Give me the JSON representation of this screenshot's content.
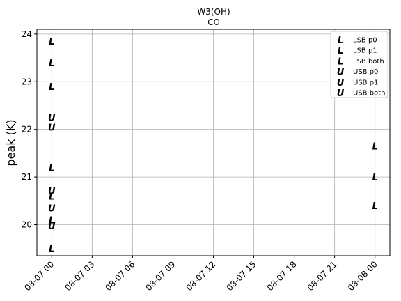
{
  "chart_data": {
    "type": "scatter",
    "title": "W3(OH)",
    "subtitle": "CO",
    "ylabel": "peak (K)",
    "xlabel": "",
    "x_ticks": [
      "08-07 00",
      "08-07 03",
      "08-07 06",
      "08-07 09",
      "08-07 12",
      "08-07 15",
      "08-07 18",
      "08-07 21",
      "08-08 00"
    ],
    "x_range_hours": [
      -1.1,
      25.1
    ],
    "y_ticks": [
      "20",
      "21",
      "22",
      "23",
      "24"
    ],
    "ylim": [
      19.35,
      24.1
    ],
    "grid": true,
    "legend_position": "top-right",
    "series": [
      {
        "name": "LSB p0",
        "marker": "L",
        "color": "#2e8fdc",
        "points": [
          {
            "x": 0,
            "y": 22.9
          },
          {
            "x": 0,
            "y": 20.1
          },
          {
            "x": 0,
            "y": 19.5
          },
          {
            "x": 24,
            "y": 20.4
          }
        ]
      },
      {
        "name": "LSB p1",
        "marker": "L",
        "color": "#dc143c",
        "points": [
          {
            "x": 0,
            "y": 23.85
          },
          {
            "x": 0,
            "y": 21.2
          },
          {
            "x": 24,
            "y": 21.65
          }
        ]
      },
      {
        "name": "LSB both",
        "marker": "L",
        "color": "#111111",
        "points": [
          {
            "x": 0,
            "y": 23.4
          },
          {
            "x": 0,
            "y": 20.6
          },
          {
            "x": 24,
            "y": 21.0
          }
        ]
      },
      {
        "name": "USB p0",
        "marker": "U",
        "color": "#2e8fdc",
        "points": [
          {
            "x": 0,
            "y": 22.25
          },
          {
            "x": 0,
            "y": 19.98
          }
        ]
      },
      {
        "name": "USB p1",
        "marker": "U",
        "color": "#dc143c",
        "points": [
          {
            "x": 0,
            "y": 22.05
          },
          {
            "x": 0,
            "y": 20.72
          }
        ]
      },
      {
        "name": "USB both",
        "marker": "U",
        "color": "#111111",
        "points": [
          {
            "x": 0,
            "y": 20.35
          }
        ]
      }
    ]
  }
}
